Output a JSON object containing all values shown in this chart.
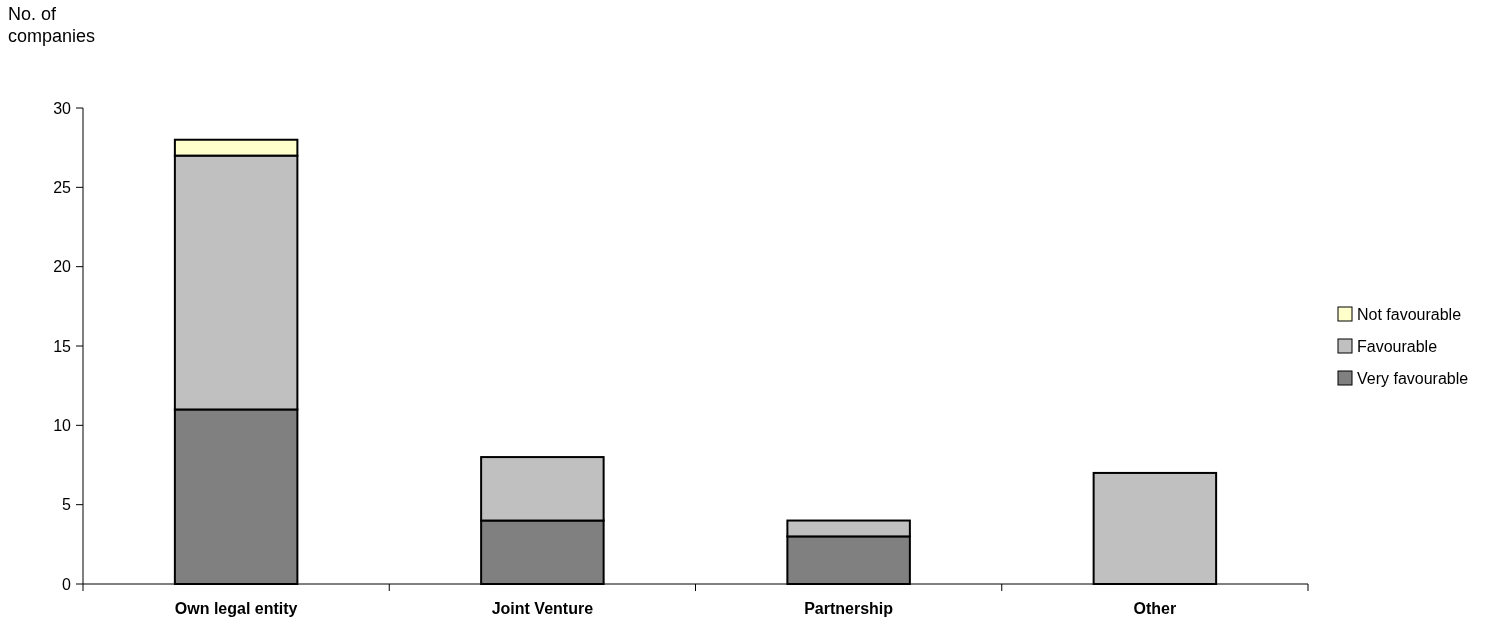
{
  "chart_data": {
    "type": "bar",
    "stacked": true,
    "ylabel": "No. of\ncompanies",
    "categories": [
      "Own legal entity",
      "Joint Venture",
      "Partnership",
      "Other"
    ],
    "series": [
      {
        "name": "Very favourable",
        "color": "#808080",
        "values": [
          11,
          4,
          3,
          0
        ]
      },
      {
        "name": "Favourable",
        "color": "#c0c0c0",
        "values": [
          16,
          4,
          1,
          7
        ]
      },
      {
        "name": "Not favourable",
        "color": "#ffffcc",
        "values": [
          1,
          0,
          0,
          0
        ]
      }
    ],
    "ylim": [
      0,
      30
    ],
    "yticks": [
      0,
      5,
      10,
      15,
      20,
      25,
      30
    ],
    "grid": false,
    "legend": "right"
  }
}
